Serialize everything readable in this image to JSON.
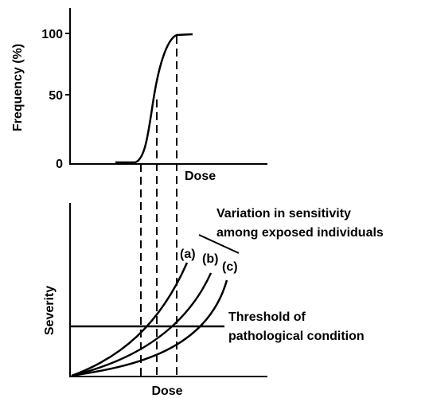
{
  "upper_chart": {
    "y_axis_label": "Frequency (%)",
    "y_tick_labels": [
      "100",
      "50",
      "0"
    ],
    "x_axis_label": "Dose"
  },
  "lower_chart": {
    "y_axis_label": "Severity",
    "x_axis_label": "Dose",
    "curve_labels": [
      "(a)",
      "(b)",
      "(c)"
    ],
    "variation_note": [
      "Variation in sensitivity",
      "among exposed individuals"
    ],
    "threshold_note": [
      "Threshold of",
      "pathological condition"
    ]
  }
}
